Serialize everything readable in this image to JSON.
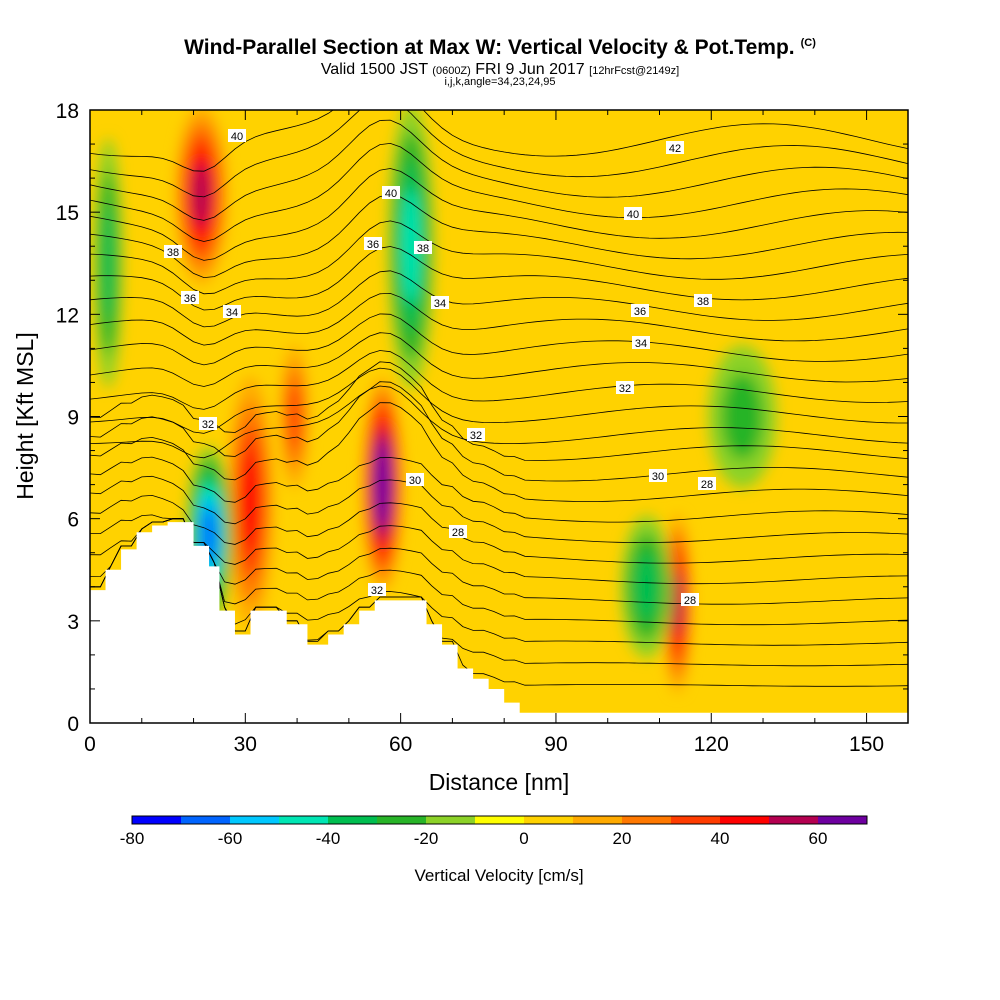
{
  "header": {
    "title": "Wind-Parallel Section at Max W: Vertical Velocity & Pot.Temp.",
    "title_tag": "(C)",
    "valid_a": "Valid 1500 JST",
    "valid_zulu": "(0600Z)",
    "valid_b": "FRI 9 Jun 2017",
    "forecast": "[12hrFcst@2149z]",
    "indices": "i,j,k,angle=34,23,24,95"
  },
  "chart_data": {
    "type": "heatmap",
    "xlabel": "Distance [nm]",
    "ylabel": "Height [Kft MSL]",
    "xlim": [
      0,
      158
    ],
    "ylim": [
      0,
      18
    ],
    "x_ticks": [
      "0",
      "30",
      "60",
      "90",
      "120",
      "150"
    ],
    "y_ticks": [
      "0",
      "3",
      "6",
      "9",
      "12",
      "15",
      "18"
    ],
    "colorbar": {
      "title": "Vertical Velocity [cm/s]",
      "range": [
        -80,
        70
      ],
      "labels": [
        "-80",
        "-60",
        "-40",
        "-20",
        "0",
        "20",
        "40",
        "60"
      ],
      "colors": [
        "#0000ff",
        "#0064ff",
        "#00c8ff",
        "#00e6b4",
        "#00be50",
        "#28b428",
        "#8cd228",
        "#ffff00",
        "#ffd200",
        "#ffaa00",
        "#ff7800",
        "#ff3c00",
        "#ff0000",
        "#b40050",
        "#6e00a0"
      ]
    },
    "w_field_ranges": [
      {
        "name": "updraft-20nm-upper",
        "x": [
          17,
          26
        ],
        "y": [
          13,
          18
        ],
        "w": 50
      },
      {
        "name": "updraft-30nm",
        "x": [
          27,
          35
        ],
        "y": [
          3,
          10
        ],
        "w": 35
      },
      {
        "name": "updraft-40nm",
        "x": [
          37,
          42
        ],
        "y": [
          7,
          11
        ],
        "w": 30
      },
      {
        "name": "updraft-57nm",
        "x": [
          53,
          60
        ],
        "y": [
          4,
          10
        ],
        "w": 65
      },
      {
        "name": "updraft-113nm",
        "x": [
          111,
          116
        ],
        "y": [
          1,
          6
        ],
        "w": 45
      },
      {
        "name": "downdraft-3nm",
        "x": [
          1,
          6
        ],
        "y": [
          10,
          17
        ],
        "w": -30
      },
      {
        "name": "downdraft-22nm",
        "x": [
          19,
          27
        ],
        "y": [
          3,
          8
        ],
        "w": -55
      },
      {
        "name": "downdraft-60nm-upper",
        "x": [
          58,
          66
        ],
        "y": [
          10,
          18
        ],
        "w": -35
      },
      {
        "name": "downdraft-108nm",
        "x": [
          103,
          112
        ],
        "y": [
          2,
          6
        ],
        "w": -25
      },
      {
        "name": "downdraft-125nm",
        "x": [
          120,
          132
        ],
        "y": [
          7,
          11
        ],
        "w": -15
      }
    ],
    "theta_contours": {
      "units": "C",
      "levels": [
        28,
        30,
        32,
        34,
        36,
        38,
        40,
        42
      ],
      "labels": [
        "40",
        "42",
        "40",
        "40",
        "38",
        "36",
        "38",
        "36",
        "34",
        "34",
        "36",
        "38",
        "34",
        "32",
        "32",
        "32",
        "30",
        "30",
        "28",
        "28",
        "28",
        "32"
      ]
    },
    "terrain_kft": [
      [
        0,
        3.9
      ],
      [
        3,
        4.5
      ],
      [
        6,
        5.1
      ],
      [
        9,
        5.6
      ],
      [
        12,
        5.8
      ],
      [
        15,
        5.9
      ],
      [
        18,
        5.9
      ],
      [
        20,
        5.2
      ],
      [
        23,
        4.6
      ],
      [
        25,
        3.3
      ],
      [
        28,
        2.6
      ],
      [
        31,
        3.3
      ],
      [
        35,
        3.3
      ],
      [
        38,
        2.9
      ],
      [
        42,
        2.3
      ],
      [
        46,
        2.6
      ],
      [
        49,
        2.9
      ],
      [
        52,
        3.3
      ],
      [
        55,
        3.6
      ],
      [
        58,
        3.6
      ],
      [
        62,
        3.6
      ],
      [
        65,
        2.9
      ],
      [
        68,
        2.3
      ],
      [
        71,
        1.6
      ],
      [
        74,
        1.3
      ],
      [
        77,
        1.0
      ],
      [
        80,
        0.6
      ],
      [
        83,
        0.3
      ],
      [
        90,
        0.3
      ],
      [
        100,
        0.3
      ],
      [
        120,
        0.3
      ],
      [
        140,
        0.3
      ],
      [
        158,
        0.3
      ]
    ]
  }
}
